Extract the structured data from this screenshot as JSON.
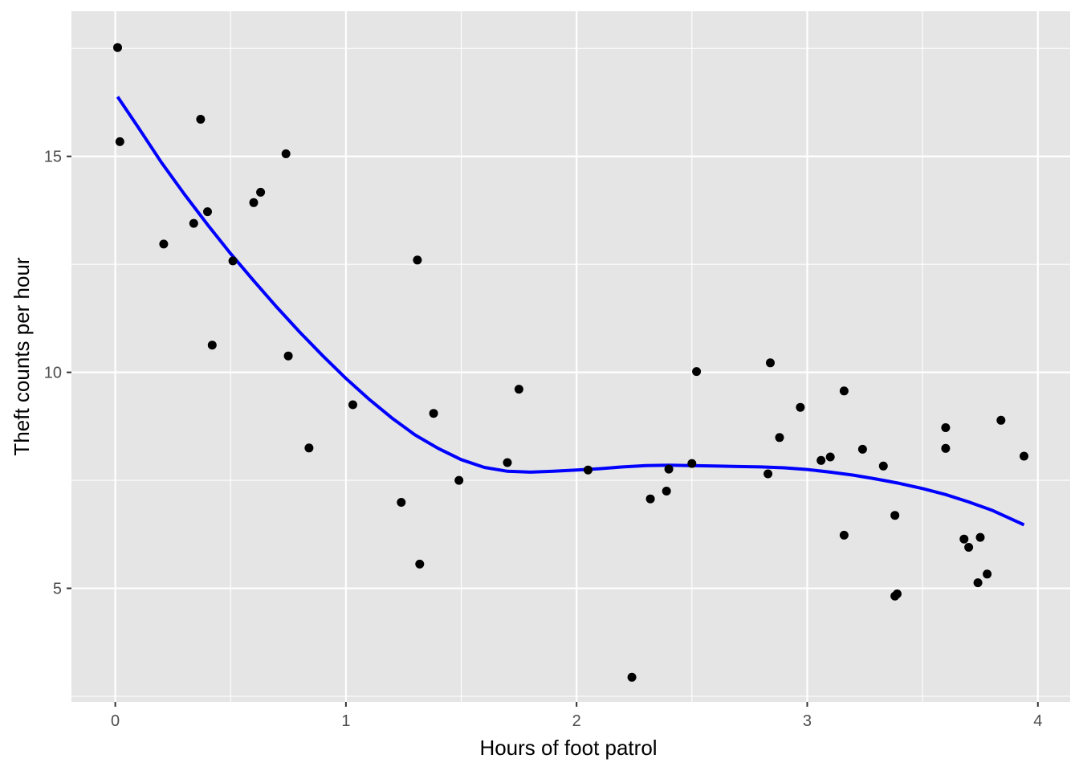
{
  "chart_data": {
    "type": "scatter",
    "title": "",
    "xlabel": "Hours of foot patrol",
    "ylabel": "Theft counts per hour",
    "xlim": [
      -0.19,
      4.14
    ],
    "ylim": [
      2.37,
      18.36
    ],
    "x_ticks": [
      0,
      1,
      2,
      3,
      4
    ],
    "x_tick_labels": [
      "0",
      "1",
      "2",
      "3",
      "4"
    ],
    "y_ticks": [
      5,
      10,
      15
    ],
    "y_tick_labels": [
      "5",
      "10",
      "15"
    ],
    "grid": true,
    "colors": {
      "panel_background": "#e5e5e5",
      "grid": "#ffffff",
      "points": "#000000",
      "fit_line": "#0000ff",
      "tick_label": "#4d4d4d",
      "axis_label": "#000000"
    },
    "series": [
      {
        "type": "points",
        "x": [
          0.01,
          0.02,
          0.21,
          0.34,
          0.37,
          0.4,
          0.42,
          0.51,
          0.6,
          0.63,
          0.74,
          0.75,
          0.84,
          1.03,
          1.24,
          1.31,
          1.32,
          1.38,
          1.49,
          1.7,
          1.75,
          2.05,
          2.24,
          2.32,
          2.39,
          2.4,
          2.5,
          2.52,
          2.83,
          2.84,
          2.88,
          2.97,
          3.06,
          3.1,
          3.16,
          3.16,
          3.24,
          3.33,
          3.38,
          3.38,
          3.39,
          3.6,
          3.6,
          3.68,
          3.7,
          3.74,
          3.75,
          3.78,
          3.84,
          3.94
        ],
        "y": [
          17.52,
          15.34,
          12.97,
          13.45,
          15.86,
          13.72,
          10.63,
          12.58,
          13.93,
          14.17,
          15.06,
          10.38,
          8.25,
          9.25,
          6.99,
          12.6,
          5.56,
          9.05,
          7.5,
          7.91,
          9.61,
          7.74,
          2.94,
          7.07,
          7.25,
          7.76,
          7.89,
          10.02,
          7.65,
          10.22,
          8.49,
          9.19,
          7.96,
          8.04,
          9.57,
          6.23,
          8.22,
          7.83,
          4.82,
          6.69,
          4.87,
          8.72,
          8.24,
          6.14,
          5.95,
          5.13,
          6.18,
          5.33,
          8.89,
          8.06
        ]
      },
      {
        "type": "line",
        "x": [
          0.01,
          0.1,
          0.2,
          0.3,
          0.4,
          0.5,
          0.6,
          0.7,
          0.8,
          0.9,
          1.0,
          1.1,
          1.2,
          1.3,
          1.4,
          1.5,
          1.6,
          1.7,
          1.8,
          1.9,
          2.0,
          2.1,
          2.2,
          2.3,
          2.4,
          2.5,
          2.6,
          2.7,
          2.8,
          2.9,
          3.0,
          3.1,
          3.2,
          3.3,
          3.4,
          3.5,
          3.6,
          3.7,
          3.8,
          3.94
        ],
        "y": [
          16.38,
          15.67,
          14.86,
          14.12,
          13.42,
          12.75,
          12.12,
          11.51,
          10.93,
          10.38,
          9.86,
          9.38,
          8.94,
          8.55,
          8.24,
          7.98,
          7.8,
          7.71,
          7.69,
          7.71,
          7.74,
          7.77,
          7.81,
          7.84,
          7.85,
          7.84,
          7.83,
          7.82,
          7.81,
          7.79,
          7.75,
          7.69,
          7.62,
          7.53,
          7.43,
          7.31,
          7.17,
          7.0,
          6.81,
          6.47
        ]
      }
    ]
  }
}
